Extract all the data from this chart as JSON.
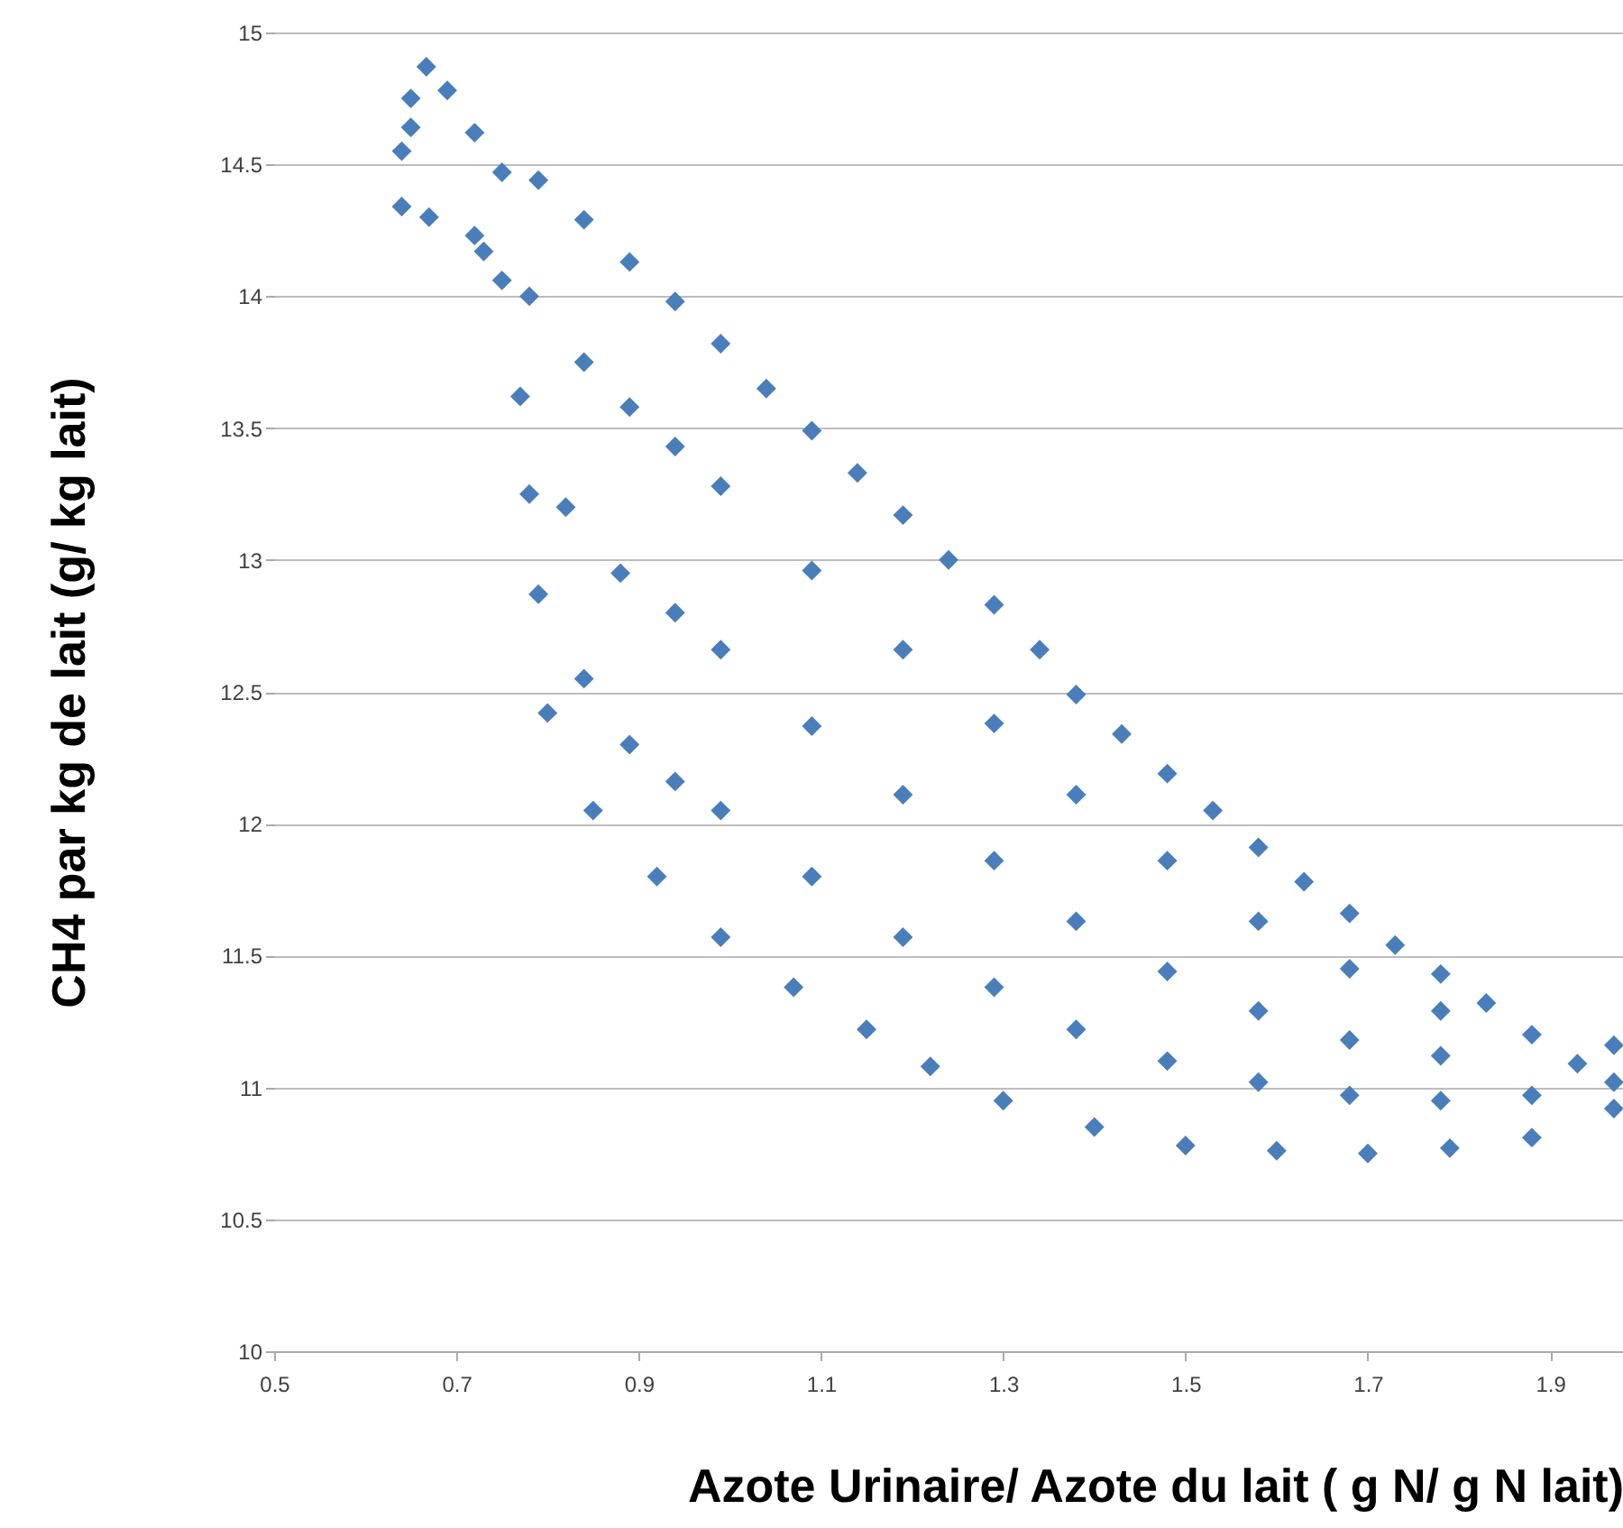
{
  "chart_data": {
    "type": "scatter",
    "xlabel": "Azote Urinaire/ Azote du lait ( g N/ g N lait)",
    "ylabel": "CH4 par kg de lait (g/ kg lait)",
    "xlim": [
      0.5,
      1.98
    ],
    "ylim": [
      10,
      15
    ],
    "xticks": [
      0.5,
      0.7,
      0.9,
      1.1,
      1.3,
      1.5,
      1.7,
      1.9
    ],
    "yticks": [
      10,
      10.5,
      11,
      11.5,
      12,
      12.5,
      13,
      13.5,
      14,
      14.5,
      15
    ],
    "grid": "y",
    "marker": "diamond",
    "series": [
      {
        "color": "#4a7ebb",
        "x": [
          0.64,
          0.65,
          0.667,
          0.69,
          0.72,
          0.75,
          0.79,
          0.84,
          0.89,
          0.94,
          0.99,
          1.04,
          1.09,
          1.14,
          1.19,
          1.24,
          1.29,
          1.34,
          1.38,
          1.43,
          1.48,
          1.53,
          1.58,
          1.63,
          1.68,
          1.73,
          1.78,
          1.83,
          1.88,
          1.93,
          1.97
        ],
        "values": [
          14.55,
          14.75,
          14.87,
          14.78,
          14.62,
          14.47,
          14.44,
          14.29,
          14.13,
          13.98,
          13.82,
          13.65,
          13.49,
          13.33,
          13.17,
          13.0,
          12.83,
          12.66,
          12.49,
          12.34,
          12.19,
          12.05,
          11.91,
          11.78,
          11.66,
          11.54,
          11.43,
          11.32,
          11.2,
          11.09,
          11.02
        ]
      },
      {
        "color": "#4a7ebb",
        "x": [
          0.64,
          0.65,
          0.67,
          0.72,
          0.75,
          0.77,
          0.78,
          0.79,
          0.8,
          0.85,
          0.92,
          0.99,
          1.07,
          1.15,
          1.22,
          1.3,
          1.4,
          1.5,
          1.6,
          1.7,
          1.79,
          1.88,
          1.97
        ],
        "values": [
          14.34,
          14.64,
          14.3,
          14.23,
          14.06,
          13.62,
          13.25,
          12.87,
          12.42,
          12.05,
          11.8,
          11.57,
          11.38,
          11.22,
          11.08,
          10.95,
          10.85,
          10.78,
          10.76,
          10.75,
          10.77,
          10.81,
          10.92
        ]
      },
      {
        "color": "#4a7ebb",
        "x": [
          0.84,
          0.89,
          0.94,
          0.99,
          1.09,
          1.19,
          1.29,
          1.38,
          1.48,
          1.58,
          1.68,
          1.78,
          1.88
        ],
        "values": [
          12.55,
          12.3,
          12.16,
          12.05,
          11.8,
          11.57,
          11.38,
          11.22,
          11.1,
          11.02,
          10.97,
          10.95,
          10.97
        ]
      },
      {
        "color": "#4a7ebb",
        "x": [
          0.82,
          0.88,
          0.94,
          0.99,
          1.09,
          1.19,
          1.29,
          1.38,
          1.48,
          1.58,
          1.68,
          1.78,
          1.97
        ],
        "values": [
          13.2,
          12.95,
          12.8,
          12.66,
          12.37,
          12.11,
          11.86,
          11.63,
          11.44,
          11.29,
          11.18,
          11.12,
          11.16
        ]
      },
      {
        "color": "#4a7ebb",
        "x": [
          0.73,
          0.78,
          0.84,
          0.89,
          0.94,
          0.99,
          1.09,
          1.19,
          1.29,
          1.38,
          1.48,
          1.58,
          1.68,
          1.78
        ],
        "values": [
          14.17,
          14.0,
          13.75,
          13.58,
          13.43,
          13.28,
          12.96,
          12.66,
          12.38,
          12.11,
          11.86,
          11.63,
          11.45,
          11.29
        ]
      }
    ]
  }
}
